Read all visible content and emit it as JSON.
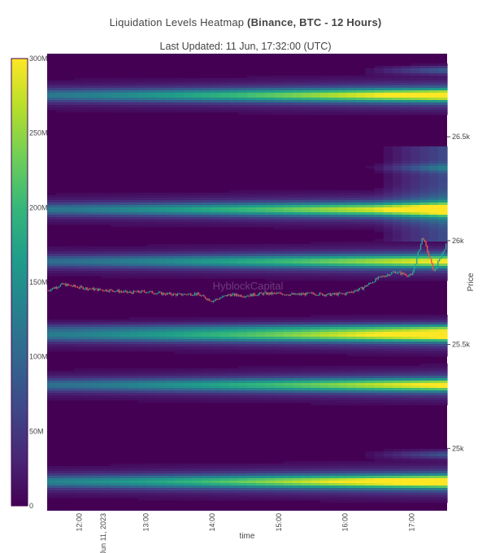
{
  "header": {
    "title_plain": "Liquidation Levels Heatmap ",
    "title_bold": "(Binance, BTC - 12 Hours)",
    "subtitle": "Last Updated: 11 Jun, 17:32:00 (UTC)"
  },
  "watermark": "HyblockCapital",
  "colors": {
    "viridis": [
      "#440154",
      "#482878",
      "#3e4989",
      "#31688e",
      "#26828e",
      "#1f9e89",
      "#35b779",
      "#6ece58",
      "#b5de2b",
      "#fde725"
    ],
    "candle_up": "#26a69a",
    "candle_down": "#ef5350"
  },
  "chart_data": {
    "type": "heatmap",
    "xlabel": "time",
    "ylabel": "Price",
    "x_ticks": [
      "12:00",
      "13:00",
      "14:00",
      "15:00",
      "16:00",
      "17:00"
    ],
    "x_date_label": "Jun 11, 2023",
    "y_ticks": [
      "25k",
      "25.5k",
      "26k",
      "26.5k"
    ],
    "y_range": [
      24700,
      26900
    ],
    "x_range": [
      "11:31",
      "17:32"
    ],
    "colorbar": {
      "ticks": [
        "0",
        "50M",
        "100M",
        "150M",
        "200M",
        "250M",
        "300M"
      ],
      "range": [
        0,
        300
      ]
    },
    "bands": [
      {
        "price": 24840,
        "strength": 290,
        "wide": true
      },
      {
        "price": 24970,
        "strength": 80,
        "late_growth": true
      },
      {
        "price": 25305,
        "strength": 240,
        "wide": true
      },
      {
        "price": 25545,
        "strength": 265,
        "wide": true
      },
      {
        "price": 25580,
        "strength": 110
      },
      {
        "price": 25900,
        "strength": 230,
        "wide": true
      },
      {
        "price": 26150,
        "strength": 255,
        "wide": true
      },
      {
        "price": 26700,
        "strength": 265,
        "wide": true
      },
      {
        "price": 26820,
        "strength": 90,
        "late_growth": true
      },
      {
        "price": 26350,
        "strength": 70,
        "late_growth": true
      }
    ],
    "price_series": {
      "times": [
        "11:31",
        "11:45",
        "12:00",
        "12:15",
        "12:30",
        "12:45",
        "13:00",
        "13:15",
        "13:30",
        "13:45",
        "14:00",
        "14:15",
        "14:30",
        "14:45",
        "15:00",
        "15:15",
        "15:30",
        "15:45",
        "16:00",
        "16:15",
        "16:30",
        "16:45",
        "17:00",
        "17:10",
        "17:20",
        "17:32"
      ],
      "close": [
        25760,
        25790,
        25775,
        25765,
        25760,
        25750,
        25755,
        25745,
        25740,
        25745,
        25710,
        25740,
        25735,
        25745,
        25745,
        25740,
        25745,
        25740,
        25745,
        25770,
        25820,
        25850,
        25830,
        26020,
        25850,
        25990
      ]
    }
  }
}
